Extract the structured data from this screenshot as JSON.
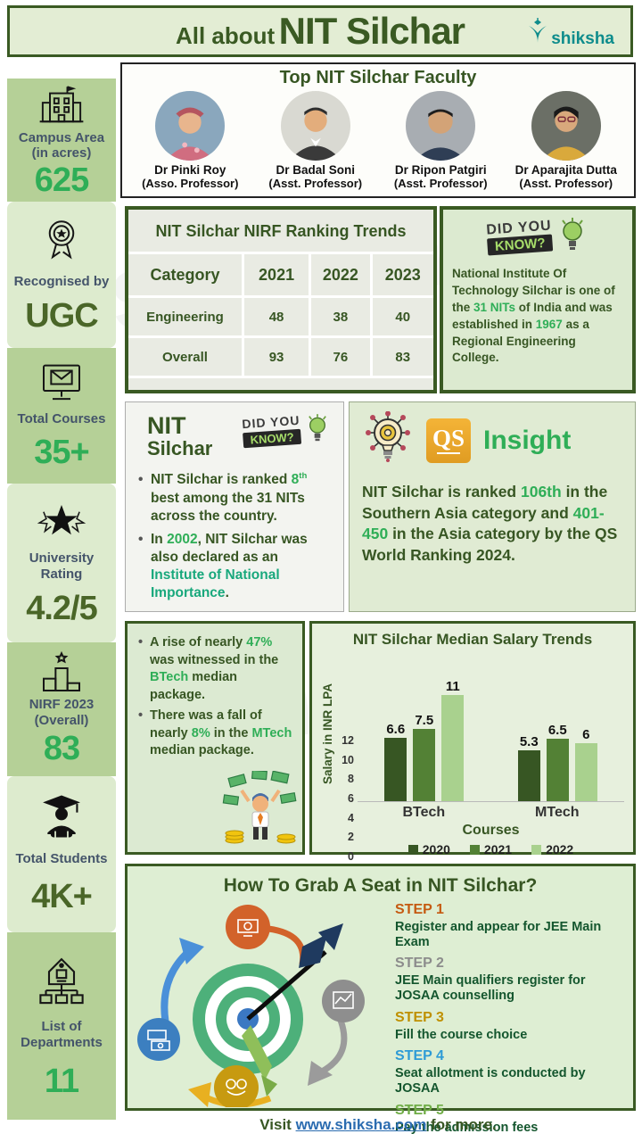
{
  "watermark": "shiksha",
  "header": {
    "title_prefix": "All about",
    "title_main": "NIT Silchar",
    "brand": "shiksha"
  },
  "sidebar": {
    "items": [
      {
        "icon": "campus-icon",
        "label": "Campus Area (in acres)",
        "value": "625",
        "value_color": "#2fae57"
      },
      {
        "icon": "medal-icon",
        "label": "Recognised by",
        "value": "UGC",
        "value_color": "#4a6628"
      },
      {
        "icon": "courses-icon",
        "label": "Total Courses",
        "value": "35+",
        "value_color": "#2fae57"
      },
      {
        "icon": "star-rating-icon",
        "label": "University Rating",
        "value": "4.2/5",
        "value_color": "#4a6628"
      },
      {
        "icon": "podium-icon",
        "label": "NIRF 2023 (Overall)",
        "value": "83",
        "value_color": "#2fae57"
      },
      {
        "icon": "graduate-icon",
        "label": "Total Students",
        "value": "4K+",
        "value_color": "#4a6628"
      },
      {
        "icon": "departments-icon",
        "label": "List of Departments",
        "value": "11",
        "value_color": "#2fae57"
      }
    ]
  },
  "faculty": {
    "title": "Top NIT Silchar Faculty",
    "members": [
      {
        "name": "Dr Pinki Roy",
        "role": "(Asso. Professor)"
      },
      {
        "name": "Dr Badal Soni",
        "role": "(Asst. Professor)"
      },
      {
        "name": "Dr Ripon Patgiri",
        "role": "(Asst. Professor)"
      },
      {
        "name": "Dr Aparajita Dutta",
        "role": "(Asst. Professor)"
      }
    ]
  },
  "nirf_table": {
    "title": "NIT Silchar NIRF Ranking Trends",
    "headers": [
      "Category",
      "2021",
      "2022",
      "2023"
    ],
    "rows": [
      [
        "Engineering",
        "48",
        "38",
        "40"
      ],
      [
        "Overall",
        "93",
        "76",
        "83"
      ]
    ]
  },
  "dyk_badge": {
    "line1": "DID YOU",
    "line2": "KNOW?"
  },
  "dyk_fact": {
    "segments": [
      {
        "t": "National Institute Of Technology Silchar is one of the "
      },
      {
        "t": "31 NITs",
        "c": "green"
      },
      {
        "t": " of India and was established in "
      },
      {
        "t": "1967",
        "c": "green"
      },
      {
        "t": " as a Regional Engineering College."
      }
    ]
  },
  "nit_dyk": {
    "title_line1": "NIT",
    "title_line2": "Silchar",
    "bullets": [
      {
        "segments": [
          {
            "t": "NIT Silchar is ranked "
          },
          {
            "t": "8",
            "c": "green"
          },
          {
            "t": "th",
            "c": "green",
            "sup": true
          },
          {
            "t": " best among the 31 NITs across the country."
          }
        ]
      },
      {
        "segments": [
          {
            "t": "In "
          },
          {
            "t": "2002",
            "c": "green"
          },
          {
            "t": ", NIT Silchar was also declared as an "
          },
          {
            "t": "Institute of National Importance",
            "c": "teal"
          },
          {
            "t": "."
          }
        ]
      }
    ]
  },
  "qs_insight": {
    "logo": "QS",
    "title": "Insight",
    "segments": [
      {
        "t": "NIT Silchar is ranked "
      },
      {
        "t": "106th",
        "c": "green"
      },
      {
        "t": " in the Southern Asia category and "
      },
      {
        "t": "401-450",
        "c": "green"
      },
      {
        "t": " in the Asia category by the QS World Ranking 2024."
      }
    ]
  },
  "salary_notes": {
    "bullets": [
      {
        "segments": [
          {
            "t": "A rise of nearly "
          },
          {
            "t": "47%",
            "c": "green"
          },
          {
            "t": " was witnessed in the "
          },
          {
            "t": "BTech",
            "c": "green"
          },
          {
            "t": " median package."
          }
        ]
      },
      {
        "segments": [
          {
            "t": "There was a fall of nearly "
          },
          {
            "t": "8%",
            "c": "green"
          },
          {
            "t": " in the "
          },
          {
            "t": "MTech",
            "c": "green"
          },
          {
            "t": " median package."
          }
        ]
      }
    ]
  },
  "chart_data": {
    "type": "bar",
    "title": "NIT Silchar Median Salary Trends",
    "categories": [
      "BTech",
      "MTech"
    ],
    "series": [
      {
        "name": "2020",
        "color": "#375623",
        "values": [
          6.6,
          5.3
        ]
      },
      {
        "name": "2021",
        "color": "#538135",
        "values": [
          7.5,
          6.5
        ]
      },
      {
        "name": "2022",
        "color": "#a9d18e",
        "values": [
          11,
          6
        ]
      }
    ],
    "xlabel": "Courses",
    "ylabel": "Salary in INR LPA",
    "ylim": [
      0,
      12
    ],
    "yticks": [
      0,
      2,
      4,
      6,
      8,
      10,
      12
    ],
    "grid": false,
    "legend_position": "bottom"
  },
  "admission": {
    "title": "How To Grab A Seat in NIT Silchar?",
    "steps": [
      {
        "label": "STEP 1",
        "color": "#c55a11",
        "text": "Register and appear for JEE Main Exam"
      },
      {
        "label": "STEP 2",
        "color": "#8c8c8c",
        "text": "JEE Main qualifiers register for JOSAA counselling"
      },
      {
        "label": "STEP 3",
        "color": "#bf9000",
        "text": "Fill the course choice"
      },
      {
        "label": "STEP 4",
        "color": "#2e9bd6",
        "text": "Seat allotment is conducted by JOSAA"
      },
      {
        "label": "STEP 5",
        "color": "#70ad47",
        "text": "Pay the admission fees"
      }
    ]
  },
  "footer": {
    "prefix": "Visit ",
    "link": "www.shiksha.com",
    "suffix": " for more."
  }
}
